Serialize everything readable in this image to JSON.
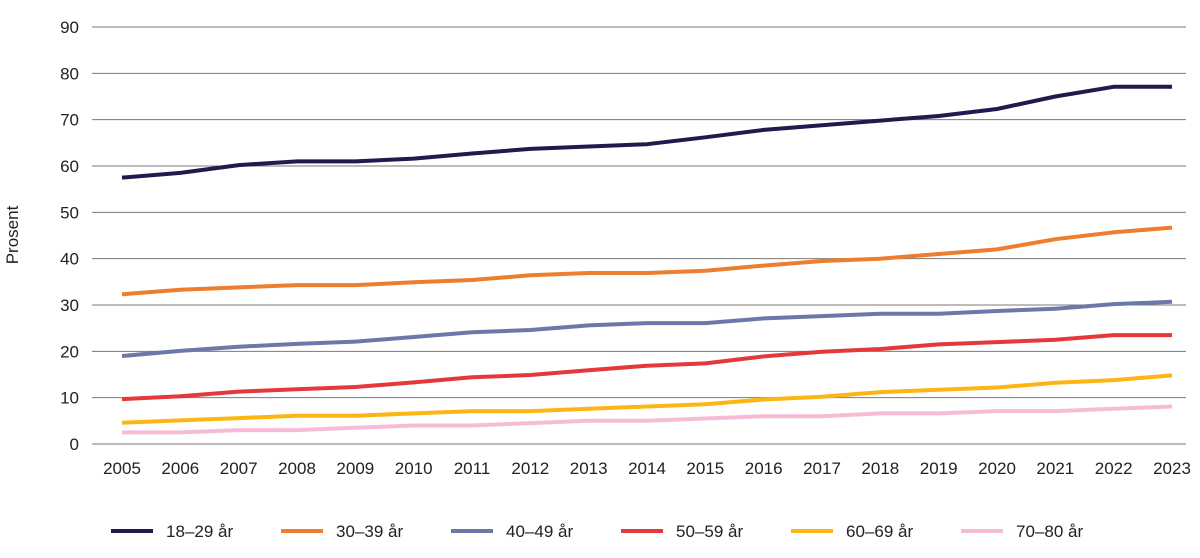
{
  "chart_data": {
    "type": "line",
    "title": "",
    "xlabel": "",
    "ylabel": "Prosent",
    "ylim": [
      0,
      90
    ],
    "yticks": [
      0,
      10,
      20,
      30,
      40,
      50,
      60,
      70,
      80,
      90
    ],
    "grid": true,
    "legend_position": "bottom",
    "categories": [
      "2005",
      "2006",
      "2007",
      "2008",
      "2009",
      "2010",
      "2011",
      "2012",
      "2013",
      "2014",
      "2015",
      "2016",
      "2017",
      "2018",
      "2019",
      "2020",
      "2021",
      "2022",
      "2023"
    ],
    "series": [
      {
        "name": "18–29 år",
        "color": "#1f1b4d",
        "values": [
          57.5,
          58.5,
          60.2,
          61.0,
          61.0,
          61.6,
          62.7,
          63.7,
          64.2,
          64.7,
          66.2,
          67.8,
          68.8,
          69.8,
          70.8,
          72.3,
          75.0,
          77.1,
          77.1
        ]
      },
      {
        "name": "30–39 år",
        "color": "#ee7d2d",
        "values": [
          32.3,
          33.3,
          33.8,
          34.3,
          34.3,
          34.9,
          35.4,
          36.4,
          36.9,
          36.9,
          37.4,
          38.5,
          39.5,
          40.0,
          41.0,
          42.0,
          44.2,
          45.7,
          46.7
        ]
      },
      {
        "name": "40–49 år",
        "color": "#6c78a8",
        "values": [
          19.0,
          20.1,
          21.0,
          21.6,
          22.1,
          23.1,
          24.1,
          24.6,
          25.6,
          26.1,
          26.1,
          27.1,
          27.6,
          28.1,
          28.1,
          28.7,
          29.2,
          30.2,
          30.7
        ]
      },
      {
        "name": "50–59 år",
        "color": "#e5383b",
        "values": [
          9.7,
          10.3,
          11.3,
          11.8,
          12.3,
          13.3,
          14.4,
          14.9,
          15.9,
          16.9,
          17.4,
          18.9,
          19.9,
          20.5,
          21.5,
          22.0,
          22.5,
          23.5,
          23.5
        ]
      },
      {
        "name": "60–69 år",
        "color": "#fbb614",
        "values": [
          4.6,
          5.1,
          5.6,
          6.1,
          6.1,
          6.6,
          7.1,
          7.1,
          7.6,
          8.1,
          8.6,
          9.6,
          10.2,
          11.2,
          11.7,
          12.2,
          13.2,
          13.8,
          14.8
        ]
      },
      {
        "name": "70–80 år",
        "color": "#f6bcd7",
        "values": [
          2.5,
          2.5,
          3.0,
          3.0,
          3.5,
          4.0,
          4.0,
          4.5,
          5.0,
          5.0,
          5.5,
          6.0,
          6.0,
          6.6,
          6.6,
          7.1,
          7.1,
          7.6,
          8.1
        ]
      }
    ]
  }
}
